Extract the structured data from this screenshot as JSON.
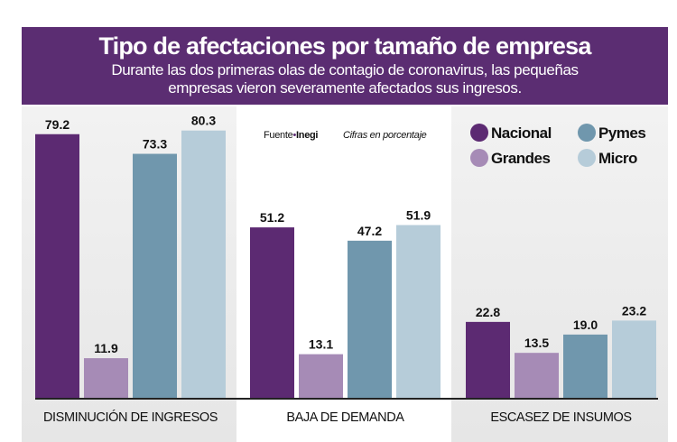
{
  "title": "Tipo de afectaciones por tamaño de empresa",
  "subtitle_line1": "Durante las dos primeras olas de contagio de coronavirus, las pequeñas",
  "subtitle_line2": "empresas vieron severamente afectados sus ingresos.",
  "source_prefix": "Fuente",
  "source_name": "Inegi",
  "note": "Cifras en porcentaje",
  "chart_data": {
    "type": "bar",
    "categories": [
      "DISMINUCIÓN DE INGRESOS",
      "BAJA DE DEMANDA",
      "ESCASEZ DE INSUMOS"
    ],
    "series": [
      {
        "name": "Nacional",
        "color": "#5c2a72",
        "values": [
          79.2,
          51.2,
          22.8
        ]
      },
      {
        "name": "Grandes",
        "color": "#a68bb6",
        "values": [
          11.9,
          13.1,
          13.5
        ]
      },
      {
        "name": "Pymes",
        "color": "#7097ad",
        "values": [
          73.3,
          47.2,
          19.0
        ]
      },
      {
        "name": "Micro",
        "color": "#b6ccd9",
        "values": [
          80.3,
          51.9,
          23.2
        ]
      }
    ],
    "ylim": [
      0,
      85
    ],
    "grid": false,
    "legend_placement": "top-right",
    "value_labels": true
  }
}
